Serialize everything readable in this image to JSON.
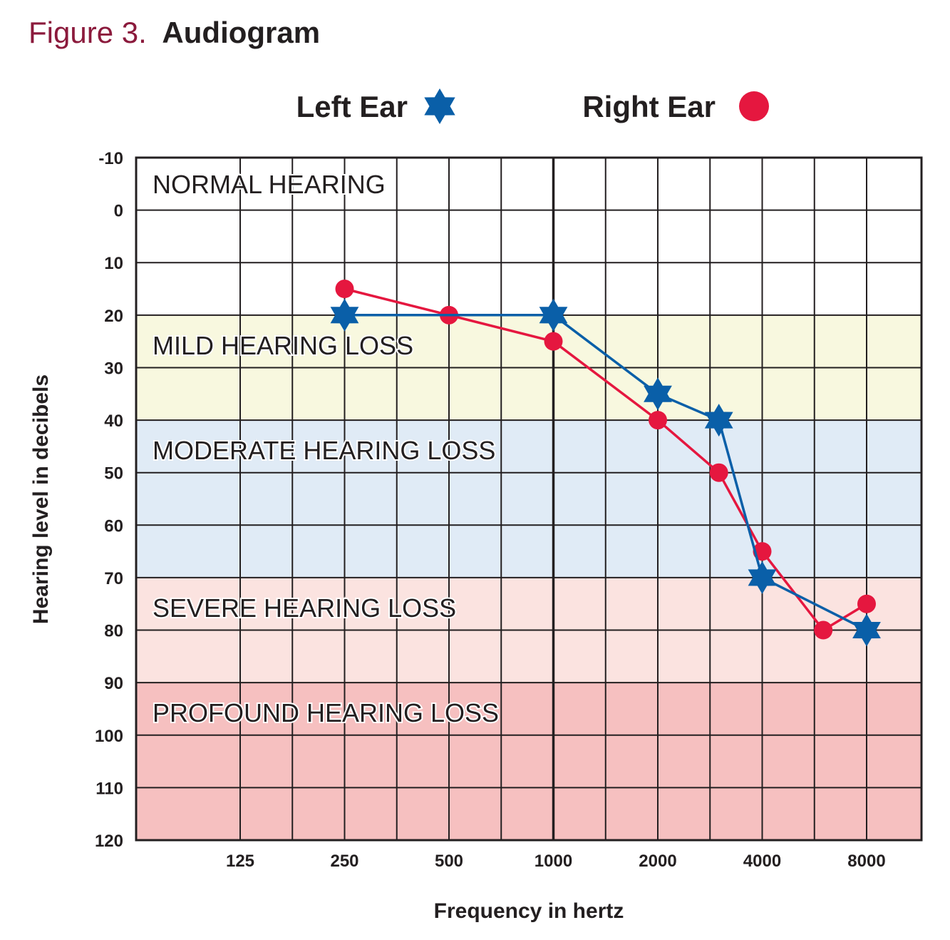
{
  "figure": {
    "number": "Figure 3.",
    "name": "Audiogram"
  },
  "colors": {
    "left": "#0a5fa8",
    "right": "#e5173f",
    "title_accent": "#8b1a3c"
  },
  "chart_data": {
    "type": "line",
    "title": "Audiogram",
    "xlabel": "Frequency in hertz",
    "ylabel": "Hearing level in decibels",
    "x_ticks": [
      "125",
      "250",
      "500",
      "1000",
      "2000",
      "4000",
      "8000"
    ],
    "y_ticks": [
      "-10",
      "0",
      "10",
      "20",
      "30",
      "40",
      "50",
      "60",
      "70",
      "80",
      "90",
      "100",
      "110",
      "120"
    ],
    "ylim": [
      -10,
      120
    ],
    "grid": true,
    "legend": {
      "position": "top-center",
      "entries": [
        "Left Ear",
        "Right Ear"
      ]
    },
    "regions": [
      {
        "label": "NORMAL HEARING",
        "from": -10,
        "to": 20,
        "color": "#ffffff"
      },
      {
        "label": "MILD HEARING LOSS",
        "from": 20,
        "to": 40,
        "color": "#f8f8df"
      },
      {
        "label": "MODERATE HEARING LOSS",
        "from": 40,
        "to": 70,
        "color": "#e0ebf6"
      },
      {
        "label": "SEVERE HEARING LOSS",
        "from": 70,
        "to": 90,
        "color": "#fbe3e0"
      },
      {
        "label": "PROFOUND HEARING LOSS",
        "from": 90,
        "to": 120,
        "color": "#f6c0c0"
      }
    ],
    "series": [
      {
        "name": "Left Ear",
        "marker": "star",
        "x": [
          250,
          1000,
          2000,
          3000,
          4000,
          8000
        ],
        "values": [
          20,
          20,
          35,
          40,
          70,
          80
        ]
      },
      {
        "name": "Right Ear",
        "marker": "circle",
        "x": [
          250,
          500,
          1000,
          2000,
          3000,
          4000,
          6000,
          8000
        ],
        "values": [
          15,
          20,
          25,
          40,
          50,
          65,
          80,
          75
        ]
      }
    ]
  }
}
